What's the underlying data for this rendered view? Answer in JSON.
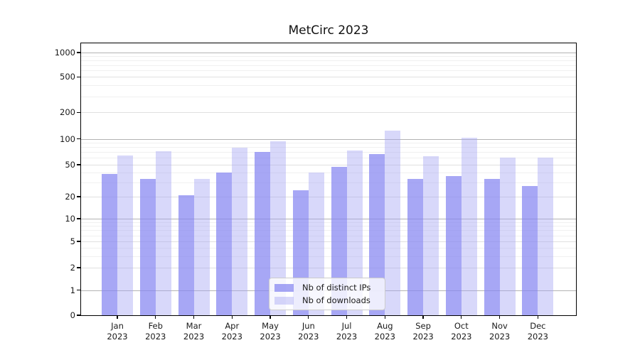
{
  "figure": {
    "background": "#ffffff"
  },
  "chart_data": {
    "type": "bar",
    "title": "MetCirc 2023",
    "xlabel": "",
    "ylabel": "",
    "categories": [
      "Jan",
      "Feb",
      "Mar",
      "Apr",
      "May",
      "Jun",
      "Jul",
      "Aug",
      "Sep",
      "Oct",
      "Nov",
      "Dec"
    ],
    "category_year": "2023",
    "series": [
      {
        "name": "Nb of distinct IPs",
        "color": "#a6a6f4",
        "color_rgba": "rgba(133,133,241,0.72)",
        "values": [
          38,
          33,
          21,
          40,
          71,
          24,
          47,
          66,
          33,
          36,
          33,
          27
        ]
      },
      {
        "name": "Nb of downloads",
        "color": "#d9d9fa",
        "color_rgba": "rgba(163,163,243,0.42)",
        "values": [
          64,
          72,
          33,
          79,
          93,
          40,
          73,
          125,
          63,
          102,
          61,
          60
        ]
      }
    ],
    "y_scale": "log-like with 0 baseline",
    "y_ticks": [
      0,
      1,
      2,
      5,
      10,
      20,
      50,
      100,
      200,
      500,
      1000
    ],
    "y_major_gridlines": [
      1,
      10,
      100,
      1000
    ],
    "y_labeled_minor_gridlines": [
      2,
      5,
      20,
      50,
      200,
      500
    ],
    "y_unlabeled_minor_gridlines": [
      3,
      4,
      6,
      7,
      8,
      9,
      30,
      40,
      60,
      70,
      80,
      90,
      300,
      400,
      600,
      700,
      800,
      900
    ],
    "grid": true,
    "legend_position": "lower center"
  },
  "colors": {
    "grid_major": "#b3b3b3",
    "grid_labeled": "#e0e0e0",
    "grid_minor": "#f0f0f0",
    "axis": "#000000",
    "text": "#1a1a1a"
  }
}
